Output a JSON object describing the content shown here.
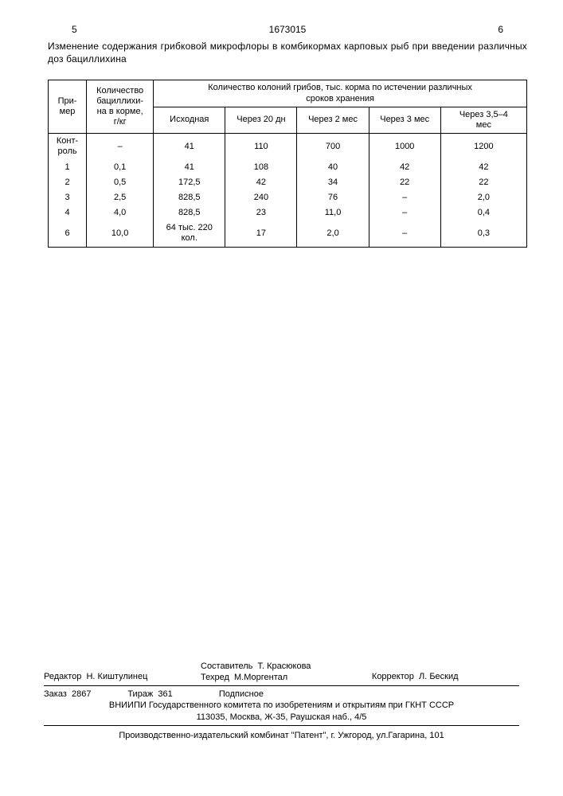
{
  "header": {
    "left_page": "5",
    "doc_number": "1673015",
    "right_page": "6"
  },
  "caption": "Изменение содержания грибковой микрофлоры в комбикормах карповых рыб при введении различных доз бациллихина",
  "table": {
    "col_primer": "При-\nмер",
    "col_amount": "Количество\nбациллихи-\nна в корме,\nг/кг",
    "col_group_header": "Количество колоний грибов, тыс. корма по истечении различных\nсроков хранения",
    "sub_cols": [
      "Исходная",
      "Через 20 дн",
      "Через 2 мес",
      "Через 3 мес",
      "Через 3,5–4\nмес"
    ],
    "rows": [
      {
        "primer": "Конт-\nроль",
        "amount": "–",
        "v": [
          "41",
          "110",
          "700",
          "1000",
          "1200"
        ]
      },
      {
        "primer": "1",
        "amount": "0,1",
        "v": [
          "41",
          "108",
          "40",
          "42",
          "42"
        ]
      },
      {
        "primer": "2",
        "amount": "0,5",
        "v": [
          "172,5",
          "42",
          "34",
          "22",
          "22"
        ]
      },
      {
        "primer": "3",
        "amount": "2,5",
        "v": [
          "828,5",
          "240",
          "76",
          "–",
          "2,0"
        ]
      },
      {
        "primer": "4",
        "amount": "4,0",
        "v": [
          "828,5",
          "23",
          "11,0",
          "–",
          "0,4"
        ]
      },
      {
        "primer": "6",
        "amount": "10,0",
        "v": [
          "64 тыс. 220\nкол.",
          "17",
          "2,0",
          "–",
          "0,3"
        ]
      }
    ]
  },
  "footer": {
    "editor_label": "Редактор",
    "editor_name": "Н. Киштулинец",
    "compiler_label": "Составитель",
    "compiler_name": "Т. Красюкова",
    "techred_label": "Техред",
    "techred_name": "М.Моргентал",
    "corrector_label": "Корректор",
    "corrector_name": "Л. Бескид",
    "order_label": "Заказ",
    "order_num": "2867",
    "tirazh_label": "Тираж",
    "tirazh_num": "361",
    "subscription": "Подписное",
    "org_line": "ВНИИПИ Государственного комитета по изобретениям и открытиям при ГКНТ СССР",
    "address": "113035, Москва, Ж-35, Раушская наб., 4/5",
    "printer": "Производственно-издательский комбинат \"Патент\", г. Ужгород, ул.Гагарина, 101"
  }
}
